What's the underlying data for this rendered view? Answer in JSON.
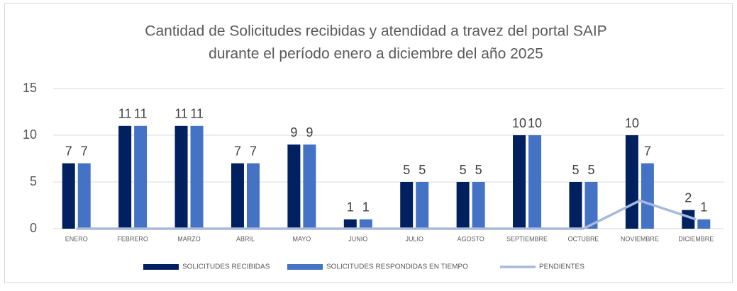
{
  "chart_data": {
    "type": "bar",
    "title": [
      "Cantidad de Solicitudes recibidas y atendidad a travez del portal SAIP",
      "durante el período enero a diciembre del año 2025"
    ],
    "categories": [
      "ENERO",
      "FEBRERO",
      "MARZO",
      "ABRIL",
      "MAYO",
      "JUNIO",
      "JULIO",
      "AGOSTO",
      "SEPTIEMBRE",
      "OCTUBRE",
      "NOVIEMBRE",
      "DICIEMBRE"
    ],
    "series": [
      {
        "name": "SOLICITUDES RECIBIDAS",
        "color": "#002060",
        "values": [
          7,
          11,
          11,
          7,
          9,
          1,
          5,
          5,
          10,
          5,
          10,
          2
        ]
      },
      {
        "name": "SOLICITUDES RESPONDIDAS EN TIEMPO",
        "color": "#4472c4",
        "values": [
          7,
          11,
          11,
          7,
          9,
          1,
          5,
          5,
          10,
          5,
          7,
          1
        ]
      },
      {
        "name": "PENDIENTES",
        "color": "#a9b8de",
        "type": "line",
        "values": [
          0,
          0,
          0,
          0,
          0,
          0,
          0,
          0,
          0,
          0,
          3,
          1
        ]
      }
    ],
    "ylim": [
      0,
      15
    ],
    "yticks": [
      0,
      5,
      10,
      15
    ],
    "grid": true,
    "legend": "bottom"
  }
}
